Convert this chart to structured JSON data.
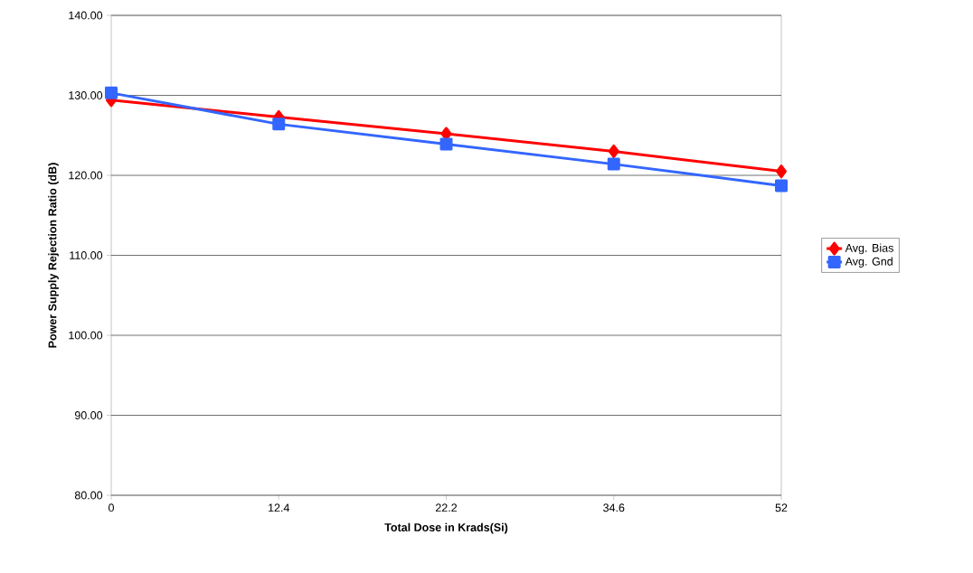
{
  "chart_data": {
    "type": "line",
    "xlabel": "Total Dose in Krads(Si)",
    "ylabel": "Power Supply Rejection Ratio (dB)",
    "categories": [
      "0",
      "12.4",
      "22.2",
      "34.6",
      "52"
    ],
    "series": [
      {
        "name": "Avg. Bias",
        "color": "#ff0000",
        "marker": "diamond",
        "values": [
          129.4,
          127.3,
          125.2,
          123.0,
          120.5
        ]
      },
      {
        "name": "Avg. Gnd",
        "color": "#3366ff",
        "marker": "square",
        "values": [
          130.3,
          126.4,
          123.9,
          121.4,
          118.7
        ]
      }
    ],
    "ylim": [
      80,
      140
    ],
    "yticks": [
      {
        "value": 80,
        "label": "80.00"
      },
      {
        "value": 90,
        "label": "90.00"
      },
      {
        "value": 100,
        "label": "100.00"
      },
      {
        "value": 110,
        "label": "110.00"
      },
      {
        "value": 120,
        "label": "120.00"
      },
      {
        "value": 130,
        "label": "130.00"
      },
      {
        "value": 140,
        "label": "140.00"
      }
    ],
    "grid": "y",
    "legend": "right",
    "line_style": "solid"
  }
}
